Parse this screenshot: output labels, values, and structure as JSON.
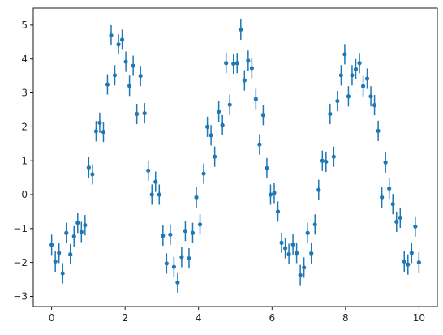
{
  "chart_data": {
    "type": "scatter",
    "title": "",
    "xlabel": "",
    "ylabel": "",
    "xlim": [
      -0.5,
      10.5
    ],
    "ylim": [
      -3.3,
      5.5
    ],
    "grid": false,
    "x_ticks": [
      0,
      2,
      4,
      6,
      8,
      10
    ],
    "y_ticks": [
      -3,
      -2,
      -1,
      0,
      1,
      2,
      3,
      4,
      5
    ],
    "x_tick_labels": [
      "0",
      "2",
      "4",
      "6",
      "8",
      "10"
    ],
    "y_tick_labels": [
      "−3",
      "−2",
      "−1",
      "0",
      "1",
      "2",
      "3",
      "4",
      "5"
    ],
    "error": 0.3,
    "color": "#1f77b4",
    "series": [
      {
        "x": [
          0.0,
          0.1,
          0.2,
          0.3,
          0.4,
          0.51,
          0.61,
          0.71,
          0.81,
          0.91,
          1.01,
          1.11,
          1.21,
          1.31,
          1.41,
          1.52,
          1.62,
          1.72,
          1.82,
          1.92,
          2.02,
          2.12,
          2.22,
          2.32,
          2.42,
          2.53,
          2.63,
          2.73,
          2.83,
          2.93,
          3.03,
          3.13,
          3.23,
          3.33,
          3.43,
          3.54,
          3.64,
          3.74,
          3.84,
          3.94,
          4.04,
          4.14,
          4.24,
          4.34,
          4.44,
          4.55,
          4.65,
          4.75,
          4.85,
          4.95,
          5.05,
          5.15,
          5.25,
          5.35,
          5.45,
          5.56,
          5.66,
          5.76,
          5.86,
          5.96,
          6.06,
          6.16,
          6.26,
          6.36,
          6.46,
          6.57,
          6.67,
          6.77,
          6.87,
          6.97,
          7.07,
          7.17,
          7.27,
          7.37,
          7.47,
          7.58,
          7.68,
          7.78,
          7.88,
          7.98,
          8.08,
          8.18,
          8.28,
          8.38,
          8.48,
          8.59,
          8.69,
          8.79,
          8.89,
          8.99,
          9.09,
          9.19,
          9.29,
          9.39,
          9.49,
          9.6,
          9.7,
          9.8,
          9.9,
          10.0
        ],
        "y": [
          -1.48,
          -1.97,
          -1.72,
          -2.32,
          -1.13,
          -1.76,
          -1.23,
          -0.83,
          -1.1,
          -0.9,
          0.8,
          0.6,
          1.87,
          2.12,
          1.85,
          3.25,
          4.7,
          3.52,
          4.43,
          4.57,
          3.92,
          3.21,
          3.8,
          2.38,
          3.5,
          2.4,
          0.71,
          0.0,
          0.38,
          0.0,
          -1.21,
          -2.03,
          -1.18,
          -2.13,
          -2.59,
          -1.84,
          -1.07,
          -1.88,
          -1.13,
          -0.08,
          -0.88,
          0.62,
          2.0,
          1.75,
          1.12,
          2.45,
          2.05,
          3.88,
          2.65,
          3.86,
          3.88,
          4.87,
          3.37,
          3.95,
          3.73,
          2.82,
          1.48,
          2.35,
          0.78,
          0.0,
          0.05,
          -0.5,
          -1.42,
          -1.58,
          -1.75,
          -1.47,
          -1.72,
          -2.37,
          -2.15,
          -1.13,
          -1.73,
          -0.88,
          0.14,
          1.0,
          0.97,
          2.38,
          1.12,
          2.76,
          3.52,
          4.14,
          2.9,
          3.52,
          3.7,
          3.88,
          3.2,
          3.42,
          2.9,
          2.64,
          1.88,
          -0.08,
          0.95,
          0.18,
          -0.28,
          -0.8,
          -0.68,
          -1.97,
          -2.06,
          -1.72,
          -0.94,
          -2.0
        ]
      }
    ]
  }
}
